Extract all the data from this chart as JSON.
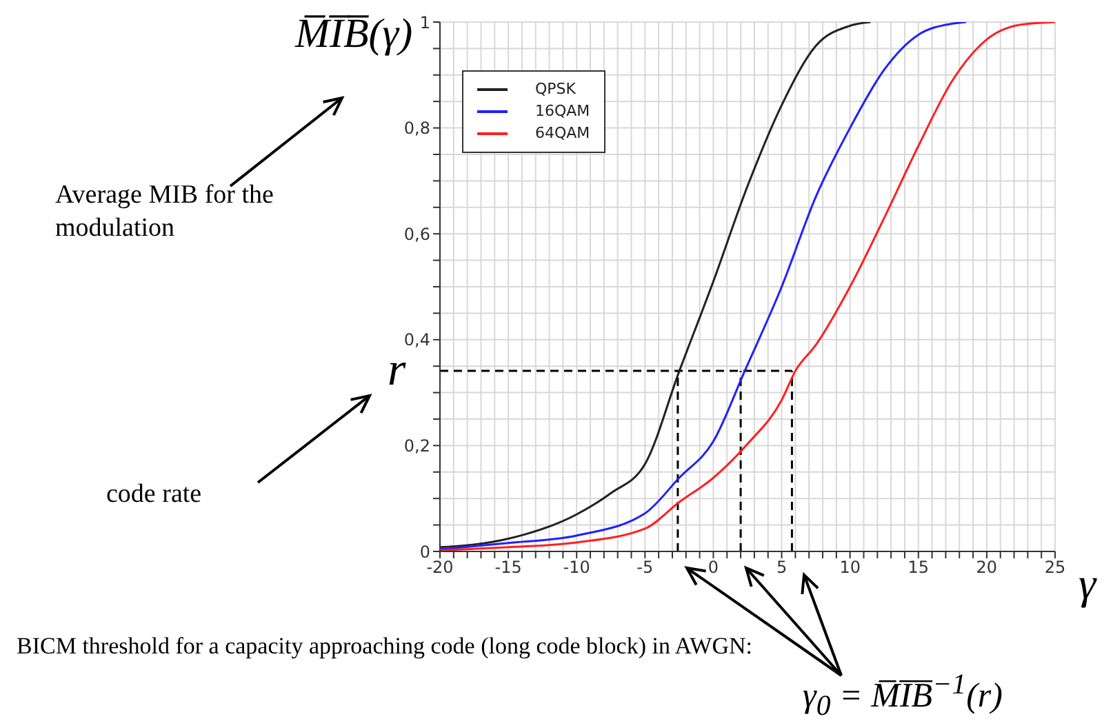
{
  "chart_data": {
    "type": "line",
    "ylabel": "M̅I̅B̅(γ)",
    "xlabel": "γ",
    "series": [
      {
        "name": "QPSK",
        "color": "#222222",
        "x": [
          -20,
          -15,
          -10,
          -7.5,
          -5,
          -2.5,
          0,
          2.5,
          5,
          7.5,
          10,
          11.5
        ],
        "values": [
          0.008,
          0.024,
          0.07,
          0.11,
          0.165,
          0.34,
          0.51,
          0.69,
          0.843,
          0.955,
          0.993,
          1
        ]
      },
      {
        "name": "16QAM",
        "color": "#2020ff",
        "x": [
          -20,
          -15,
          -10,
          -5,
          -2.5,
          0,
          2.3,
          5,
          7.5,
          10,
          12.5,
          15,
          17.5,
          18.5
        ],
        "values": [
          0.004,
          0.016,
          0.03,
          0.072,
          0.139,
          0.208,
          0.341,
          0.5,
          0.67,
          0.8,
          0.91,
          0.976,
          0.997,
          1
        ]
      },
      {
        "name": "64QAM",
        "color": "#ff2020",
        "x": [
          -20,
          -15,
          -10,
          -5,
          -2.5,
          0,
          2.5,
          5,
          6,
          7.5,
          10,
          12.5,
          15,
          17.5,
          20,
          22.5,
          25
        ],
        "values": [
          0.002,
          0.008,
          0.017,
          0.043,
          0.093,
          0.139,
          0.203,
          0.286,
          0.341,
          0.39,
          0.5,
          0.63,
          0.766,
          0.89,
          0.967,
          0.995,
          1
        ]
      }
    ],
    "xlim": [
      -20,
      25
    ],
    "xticks": [
      -20,
      {
        "value": -19,
        "label": null
      },
      {
        "value": -18,
        "label": null
      },
      {
        "value": -17,
        "label": null
      },
      {
        "value": -16,
        "label": null
      },
      -15,
      {
        "value": -14,
        "label": null
      },
      {
        "value": -13,
        "label": null
      },
      {
        "value": -12,
        "label": null
      },
      {
        "value": -11,
        "label": null
      },
      -10,
      {
        "value": -9,
        "label": null
      },
      {
        "value": -8,
        "label": null
      },
      {
        "value": -7,
        "label": null
      },
      {
        "value": -6,
        "label": null
      },
      -5,
      {
        "value": -4,
        "label": null
      },
      {
        "value": -3,
        "label": null
      },
      {
        "value": -2,
        "label": null
      },
      {
        "value": -1,
        "label": null
      },
      0,
      {
        "value": 1,
        "label": null
      },
      {
        "value": 2,
        "label": null
      },
      {
        "value": 3,
        "label": null
      },
      {
        "value": 4,
        "label": null
      },
      5,
      {
        "value": 6,
        "label": null
      },
      {
        "value": 7,
        "label": null
      },
      {
        "value": 8,
        "label": null
      },
      {
        "value": 9,
        "label": null
      },
      10,
      {
        "value": 11,
        "label": null
      },
      {
        "value": 12,
        "label": null
      },
      {
        "value": 13,
        "label": null
      },
      {
        "value": 14,
        "label": null
      },
      15,
      {
        "value": 16,
        "label": null
      },
      {
        "value": 17,
        "label": null
      },
      {
        "value": 18,
        "label": null
      },
      {
        "value": 19,
        "label": null
      },
      20,
      {
        "value": 21,
        "label": null
      },
      {
        "value": 22,
        "label": null
      },
      {
        "value": 23,
        "label": null
      },
      {
        "value": 24,
        "label": null
      },
      25
    ],
    "ylim": [
      0,
      1
    ],
    "yticks": [
      0,
      {
        "value": 0.05,
        "label": null
      },
      {
        "value": 0.1,
        "label": null
      },
      {
        "value": 0.15,
        "label": null
      },
      {
        "value": 0.2,
        "label": "0,2"
      },
      {
        "value": 0.25,
        "label": null
      },
      {
        "value": 0.3,
        "label": null
      },
      {
        "value": 0.35,
        "label": null
      },
      {
        "value": 0.4,
        "label": "0,4"
      },
      {
        "value": 0.45,
        "label": null
      },
      {
        "value": 0.5,
        "label": null
      },
      {
        "value": 0.55,
        "label": null
      },
      {
        "value": 0.6,
        "label": "0,6"
      },
      {
        "value": 0.65,
        "label": null
      },
      {
        "value": 0.7,
        "label": null
      },
      {
        "value": 0.75,
        "label": null
      },
      {
        "value": 0.8,
        "label": "0,8"
      },
      {
        "value": 0.85,
        "label": null
      },
      {
        "value": 0.9,
        "label": null
      },
      {
        "value": 0.95,
        "label": null
      },
      1
    ],
    "ref_lines": [
      {
        "axis": "y",
        "value": 0.341,
        "label": "r",
        "line_style": "dashed",
        "color": "#000000"
      },
      {
        "axis": "x",
        "value": -2.6,
        "line_style": "dashed",
        "color": "#000000"
      },
      {
        "axis": "x",
        "value": 2,
        "line_style": "dashed",
        "color": "#000000"
      },
      {
        "axis": "x",
        "value": 5.75,
        "line_style": "dashed",
        "color": "#000000"
      }
    ],
    "annotations": [
      "Average MIB for the modulation",
      "code rate",
      "BICM threshold for a capacity approaching code (long code block) in AWGN:",
      "γ$_{0}$ = M̅I̅B̅$^{−1}$(r)"
    ],
    "grid": true,
    "legend": "top left",
    "line_style": "solid",
    "marker": "none"
  }
}
